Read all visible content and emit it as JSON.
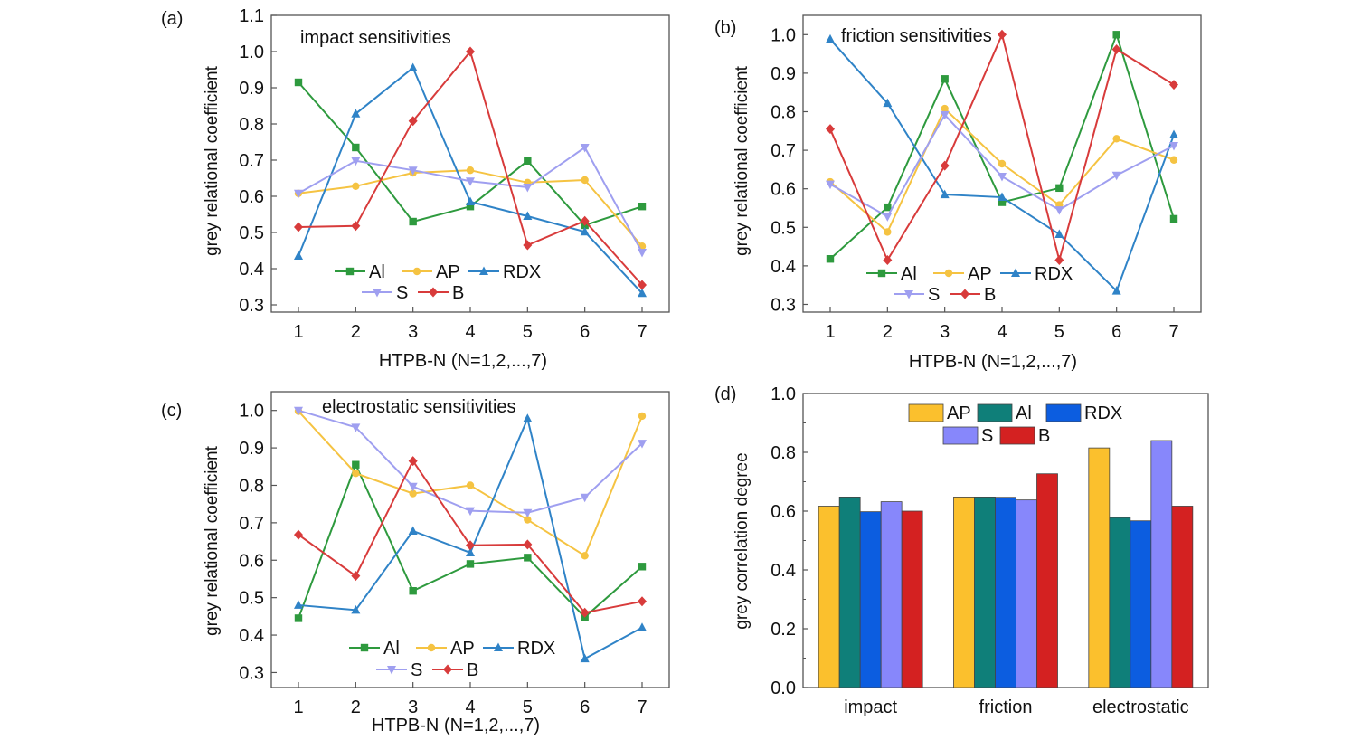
{
  "chart_data": [
    {
      "panel": "(a)",
      "type": "line",
      "title": "impact sensitivities",
      "xlabel": "HTPB-N (N=1,2,...,7)",
      "ylabel": "grey relational coefficient",
      "x": [
        1,
        2,
        3,
        4,
        5,
        6,
        7
      ],
      "ylim": [
        0.28,
        1.1
      ],
      "yticks": [
        "0.3",
        "0.4",
        "0.5",
        "0.6",
        "0.7",
        "0.8",
        "0.9",
        "1.0",
        "1.1"
      ],
      "legend_loc": "bottom-left",
      "series": [
        {
          "name": "Al",
          "color": "#2e9a3e",
          "marker": "square",
          "values": [
            0.915,
            0.735,
            0.53,
            0.572,
            0.698,
            0.52,
            0.572
          ]
        },
        {
          "name": "AP",
          "color": "#f5c342",
          "marker": "circle",
          "values": [
            0.608,
            0.628,
            0.665,
            0.672,
            0.638,
            0.645,
            0.462
          ]
        },
        {
          "name": "RDX",
          "color": "#2f83c7",
          "marker": "triangle-up",
          "values": [
            0.435,
            0.828,
            0.955,
            0.585,
            0.545,
            0.502,
            0.332
          ]
        },
        {
          "name": "S",
          "color": "#9f9ff0",
          "marker": "triangle-down",
          "values": [
            0.608,
            0.698,
            0.672,
            0.642,
            0.625,
            0.735,
            0.445
          ]
        },
        {
          "name": "B",
          "color": "#d83b3b",
          "marker": "diamond",
          "values": [
            0.515,
            0.518,
            0.808,
            1.0,
            0.465,
            0.532,
            0.355
          ]
        }
      ]
    },
    {
      "panel": "(b)",
      "type": "line",
      "title": "friction sensitivities",
      "xlabel": "HTPB-N (N=1,2,...,7)",
      "ylabel": "grey relational coefficient",
      "x": [
        1,
        2,
        3,
        4,
        5,
        6,
        7
      ],
      "ylim": [
        0.28,
        1.05
      ],
      "yticks": [
        "0.3",
        "0.4",
        "0.5",
        "0.6",
        "0.7",
        "0.8",
        "0.9",
        "1.0"
      ],
      "legend_loc": "bottom-left",
      "series": [
        {
          "name": "Al",
          "color": "#2e9a3e",
          "marker": "square",
          "values": [
            0.418,
            0.552,
            0.885,
            0.565,
            0.602,
            1.0,
            0.522
          ]
        },
        {
          "name": "AP",
          "color": "#f5c342",
          "marker": "circle",
          "values": [
            0.618,
            0.488,
            0.808,
            0.665,
            0.558,
            0.73,
            0.675
          ]
        },
        {
          "name": "RDX",
          "color": "#2f83c7",
          "marker": "triangle-up",
          "values": [
            0.988,
            0.822,
            0.585,
            0.578,
            0.482,
            0.335,
            0.74
          ]
        },
        {
          "name": "S",
          "color": "#9f9ff0",
          "marker": "triangle-down",
          "values": [
            0.612,
            0.528,
            0.792,
            0.632,
            0.545,
            0.635,
            0.712
          ]
        },
        {
          "name": "B",
          "color": "#d83b3b",
          "marker": "diamond",
          "values": [
            0.755,
            0.415,
            0.66,
            1.0,
            0.415,
            0.962,
            0.87
          ]
        }
      ]
    },
    {
      "panel": "(c)",
      "type": "line",
      "title": "electrostatic sensitivities",
      "xlabel": "HTPB-N (N=1,2,...,7)",
      "ylabel": "grey relational coefficient",
      "x": [
        1,
        2,
        3,
        4,
        5,
        6,
        7
      ],
      "ylim": [
        0.26,
        1.05
      ],
      "yticks": [
        "0.3",
        "0.4",
        "0.5",
        "0.6",
        "0.7",
        "0.8",
        "0.9",
        "1.0"
      ],
      "legend_loc": "bottom-center",
      "series": [
        {
          "name": "Al",
          "color": "#2e9a3e",
          "marker": "square",
          "values": [
            0.445,
            0.855,
            0.518,
            0.59,
            0.607,
            0.448,
            0.583
          ]
        },
        {
          "name": "AP",
          "color": "#f5c342",
          "marker": "circle",
          "values": [
            0.998,
            0.832,
            0.778,
            0.8,
            0.708,
            0.612,
            0.985
          ]
        },
        {
          "name": "RDX",
          "color": "#2f83c7",
          "marker": "triangle-up",
          "values": [
            0.48,
            0.467,
            0.678,
            0.62,
            0.978,
            0.337,
            0.42
          ]
        },
        {
          "name": "S",
          "color": "#9f9ff0",
          "marker": "triangle-down",
          "values": [
            1.0,
            0.955,
            0.797,
            0.732,
            0.727,
            0.768,
            0.912
          ]
        },
        {
          "name": "B",
          "color": "#d83b3b",
          "marker": "diamond",
          "values": [
            0.668,
            0.558,
            0.865,
            0.64,
            0.642,
            0.46,
            0.49
          ]
        }
      ]
    },
    {
      "panel": "(d)",
      "type": "bar",
      "title": "",
      "xlabel": "",
      "ylabel": "grey correlation degree",
      "categories": [
        "impact",
        "friction",
        "electrostatic"
      ],
      "ylim": [
        0.0,
        1.0
      ],
      "yticks": [
        "0.0",
        "0.2",
        "0.4",
        "0.6",
        "0.8",
        "1.0"
      ],
      "legend_loc": "top-center",
      "series": [
        {
          "name": "AP",
          "color": "#fbc02d",
          "values": [
            0.617,
            0.648,
            0.815
          ]
        },
        {
          "name": "Al",
          "color": "#0f7f79",
          "values": [
            0.648,
            0.648,
            0.578
          ]
        },
        {
          "name": "RDX",
          "color": "#0c5de0",
          "values": [
            0.598,
            0.647,
            0.567
          ]
        },
        {
          "name": "S",
          "color": "#8787fb",
          "values": [
            0.632,
            0.638,
            0.84
          ]
        },
        {
          "name": "B",
          "color": "#d42121",
          "values": [
            0.6,
            0.727,
            0.617
          ]
        }
      ]
    }
  ]
}
